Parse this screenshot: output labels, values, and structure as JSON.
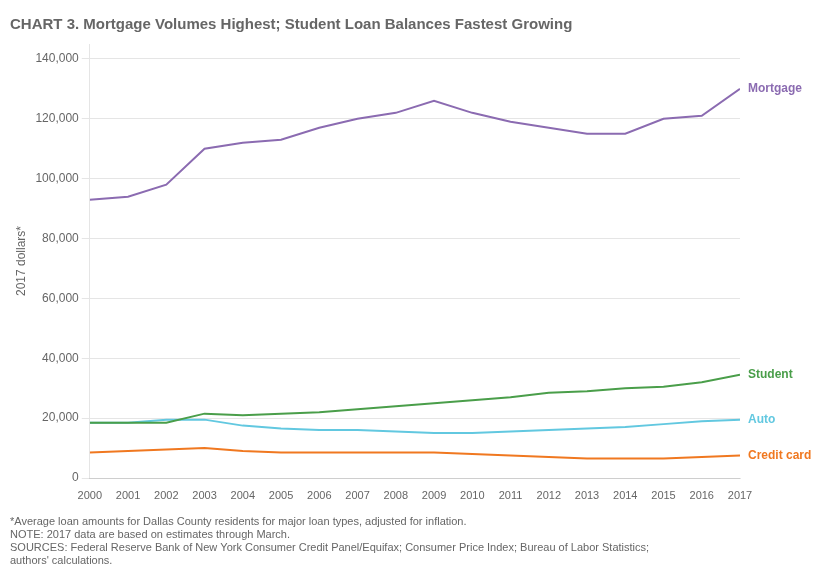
{
  "chart_data": {
    "type": "line",
    "title": "CHART 3. Mortgage Volumes Highest; Student Loan Balances Fastest Growing",
    "ylabel": "2017 dollars*",
    "x": [
      2000,
      2001,
      2002,
      2003,
      2004,
      2005,
      2006,
      2007,
      2008,
      2009,
      2010,
      2011,
      2012,
      2013,
      2014,
      2015,
      2016,
      2017
    ],
    "series": [
      {
        "name": "Mortgage",
        "color": "#8B6BB1",
        "values": [
          93000,
          94000,
          98000,
          110000,
          112000,
          113000,
          117000,
          120000,
          122000,
          126000,
          122000,
          119000,
          117000,
          115000,
          115000,
          120000,
          121000,
          130000
        ]
      },
      {
        "name": "Student",
        "color": "#4A9E4A",
        "values": [
          18500,
          18500,
          18500,
          21500,
          21000,
          21500,
          22000,
          23000,
          24000,
          25000,
          26000,
          27000,
          28500,
          29000,
          30000,
          30500,
          32000,
          34500
        ]
      },
      {
        "name": "Auto",
        "color": "#62C8E0",
        "values": [
          18500,
          18500,
          19500,
          19500,
          17500,
          16500,
          16000,
          16000,
          15500,
          15000,
          15000,
          15500,
          16000,
          16500,
          17000,
          18000,
          19000,
          19500
        ]
      },
      {
        "name": "Credit card",
        "color": "#F07820",
        "values": [
          8500,
          9000,
          9500,
          10000,
          9000,
          8500,
          8500,
          8500,
          8500,
          8500,
          8000,
          7500,
          7000,
          6500,
          6500,
          6500,
          7000,
          7500
        ]
      }
    ],
    "xlim": [
      2000,
      2017
    ],
    "xticks": [
      2000,
      2001,
      2002,
      2003,
      2004,
      2005,
      2006,
      2007,
      2008,
      2009,
      2010,
      2011,
      2012,
      2013,
      2014,
      2015,
      2016,
      2017
    ],
    "ylim": [
      0,
      145000
    ],
    "yticks": [
      0,
      {
        "value": 20000,
        "label": "20,000"
      },
      {
        "value": 40000,
        "label": "40,000"
      },
      {
        "value": 60000,
        "label": "60,000"
      },
      {
        "value": 80000,
        "label": "80,000"
      },
      {
        "value": 100000,
        "label": "100,000"
      },
      {
        "value": 120000,
        "label": "120,000"
      },
      {
        "value": 140000,
        "label": "140,000"
      }
    ],
    "grid": true,
    "annotations": [
      "*Average loan amounts for Dallas County residents for major loan types, adjusted for inflation.",
      "NOTE: 2017 data are based on estimates through March.",
      "SOURCES: Federal Reserve Bank of New York Consumer Credit Panel/Equifax; Consumer Price Index; Bureau of Labor Statistics;",
      "authors' calculations."
    ]
  }
}
